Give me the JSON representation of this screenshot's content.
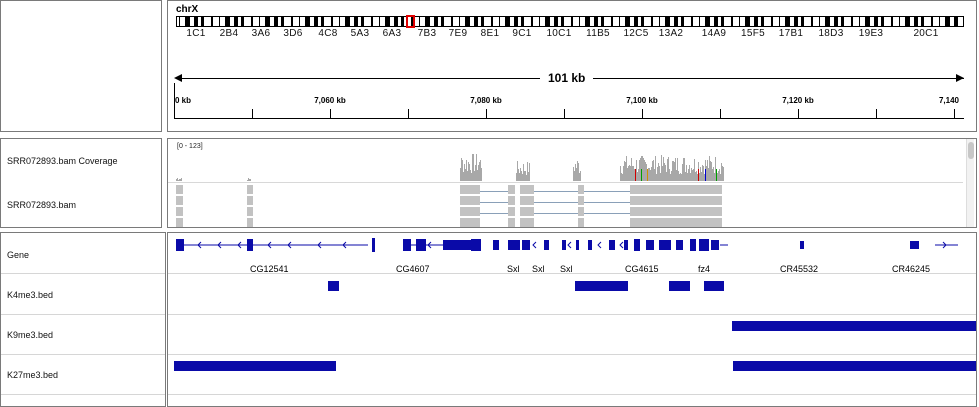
{
  "ideogram": {
    "chromosome": "chrX",
    "bands": [
      "1C1",
      "2B4",
      "3A6",
      "3D6",
      "4C8",
      "5A3",
      "6A3",
      "7B3",
      "7E9",
      "8E1",
      "9C1",
      "10C1",
      "11B5",
      "12C5",
      "13A2",
      "14A9",
      "15F5",
      "17B1",
      "18D3",
      "19E3",
      "20C1"
    ]
  },
  "ruler": {
    "span_label": "101 kb",
    "ticks": [
      "0 kb",
      "7,060 kb",
      "7,080 kb",
      "7,100 kb",
      "7,120 kb",
      "7,140"
    ]
  },
  "tracks": {
    "coverage": {
      "name": "SRR072893.bam Coverage",
      "range": "[0 - 123]"
    },
    "bam": {
      "name": "SRR072893.bam"
    },
    "gene": {
      "name": "Gene",
      "labels": [
        "CG12541",
        "CG4607",
        "Sxl",
        "Sxl",
        "Sxl",
        "CG4615",
        "fz4",
        "CR45532",
        "CR46245"
      ]
    },
    "k4": {
      "name": "K4me3.bed"
    },
    "k9": {
      "name": "K9me3.bed"
    },
    "k27": {
      "name": "K27me3.bed"
    }
  },
  "colors": {
    "feature": "#0a0aa8",
    "coverage": "#a8a8a8",
    "read": "#c2c2c2",
    "highlight": "#e00000"
  }
}
